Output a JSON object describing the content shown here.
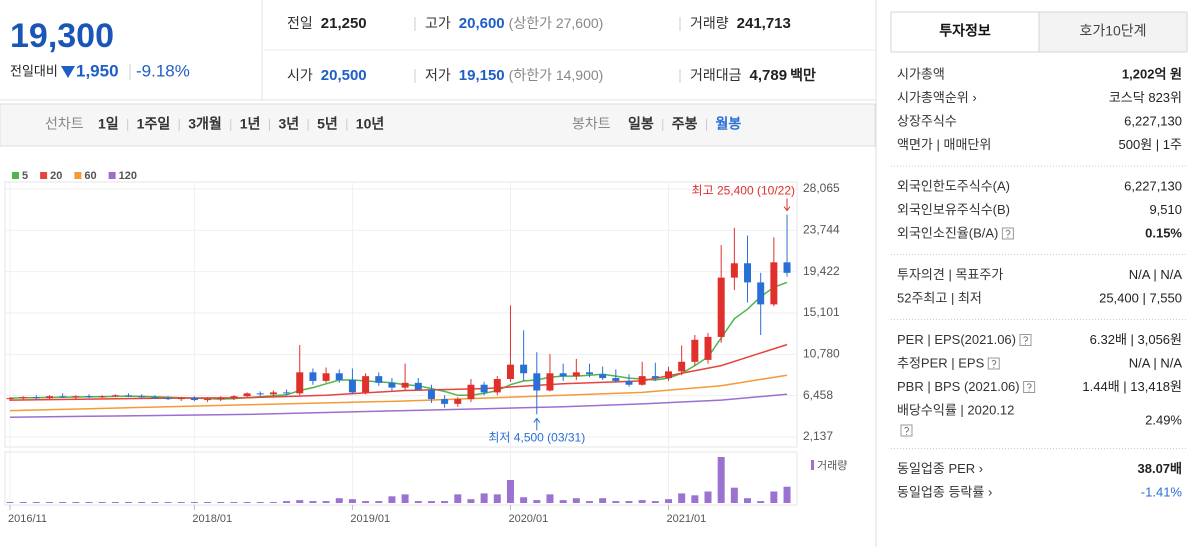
{
  "header": {
    "price": "19,300",
    "change_label": "전일대비",
    "change": "1,950",
    "change_rate": "-9.18%",
    "fields": [
      [
        {
          "label": "전일",
          "value": "21,250"
        },
        {
          "label": "고가",
          "value": "20,600",
          "note": "(상한가 27,600)",
          "color": "#1e5ec8"
        },
        {
          "label": "거래량",
          "value": "241,713"
        }
      ],
      [
        {
          "label": "시가",
          "value": "20,500",
          "color": "#1e5ec8"
        },
        {
          "label": "저가",
          "value": "19,150",
          "note": "(하한가 14,900)",
          "color": "#1e5ec8"
        },
        {
          "label": "거래대금",
          "value": "4,789",
          "unit": "백만"
        }
      ]
    ]
  },
  "period_tabs": {
    "line_chart": {
      "label": "선차트",
      "options": [
        "1일",
        "1주일",
        "3개월",
        "1년",
        "3년",
        "5년",
        "10년"
      ]
    },
    "candle_chart": {
      "label": "봉차트",
      "options": [
        "일봉",
        "주봉",
        "월봉"
      ],
      "selected": 2
    }
  },
  "chart_data": {
    "type": "candlestick",
    "categories": [
      "2016/11",
      null,
      null,
      null,
      null,
      null,
      null,
      null,
      null,
      null,
      null,
      null,
      null,
      null,
      "2018/01",
      null,
      null,
      null,
      null,
      null,
      null,
      null,
      null,
      null,
      null,
      null,
      "2019/01",
      null,
      null,
      null,
      null,
      null,
      null,
      null,
      null,
      null,
      null,
      null,
      "2020/01",
      null,
      null,
      null,
      null,
      null,
      null,
      null,
      null,
      null,
      null,
      null,
      "2021/01",
      null,
      null,
      null,
      null,
      null,
      null,
      null,
      null,
      null
    ],
    "open": [
      6100,
      6200,
      6300,
      6200,
      6400,
      6300,
      6400,
      6300,
      6400,
      6500,
      6400,
      6300,
      6200,
      6100,
      6200,
      6000,
      6100,
      6200,
      6400,
      6700,
      6600,
      6800,
      6700,
      8900,
      8000,
      8800,
      8100,
      6800,
      8500,
      7800,
      7300,
      7800,
      7100,
      6100,
      5600,
      6100,
      7600,
      6800,
      8200,
      9700,
      8800,
      7000,
      8800,
      8500,
      8900,
      8700,
      8300,
      8000,
      7600,
      8500,
      8300,
      9000,
      10000,
      10200,
      12600,
      18800,
      20300,
      18300,
      16000,
      20400
    ],
    "high": [
      6300,
      6400,
      6500,
      6500,
      6700,
      6500,
      6600,
      6500,
      6600,
      6700,
      6600,
      6500,
      6400,
      6300,
      6400,
      6300,
      6400,
      6500,
      6800,
      6900,
      7000,
      7100,
      11750,
      9300,
      9400,
      9200,
      9300,
      8800,
      8900,
      8300,
      9800,
      8300,
      7600,
      6500,
      6300,
      8200,
      7900,
      8500,
      15900,
      13300,
      11000,
      10800,
      9800,
      10300,
      9800,
      9500,
      9200,
      8700,
      10000,
      9900,
      9500,
      11700,
      12800,
      13000,
      22200,
      24000,
      23200,
      19300,
      23000,
      25400
    ],
    "low": [
      5900,
      6000,
      6100,
      6100,
      6200,
      6100,
      6200,
      6200,
      6300,
      6300,
      6200,
      6100,
      6000,
      5900,
      5900,
      5800,
      5900,
      6000,
      6300,
      6400,
      6400,
      6500,
      6500,
      7600,
      7800,
      7800,
      6600,
      6600,
      7500,
      7000,
      7000,
      7000,
      5700,
      5200,
      5300,
      5800,
      6500,
      6500,
      7900,
      8000,
      4500,
      6900,
      8000,
      8100,
      8400,
      8100,
      7800,
      7400,
      7500,
      8000,
      8000,
      8600,
      9600,
      9800,
      12000,
      17500,
      16200,
      12800,
      15800,
      18900
    ],
    "close": [
      6200,
      6300,
      6200,
      6400,
      6300,
      6400,
      6300,
      6400,
      6500,
      6400,
      6300,
      6200,
      6100,
      6200,
      6000,
      6100,
      6200,
      6400,
      6700,
      6600,
      6800,
      6700,
      8900,
      8000,
      8800,
      8100,
      6800,
      8500,
      7800,
      7300,
      7800,
      7100,
      6100,
      5600,
      6100,
      7600,
      6800,
      8200,
      9700,
      8800,
      7000,
      8800,
      8500,
      8900,
      8700,
      8300,
      8000,
      7600,
      8500,
      8300,
      9000,
      10000,
      12300,
      12600,
      18800,
      20300,
      18300,
      16000,
      20400,
      19300
    ],
    "up_color": "#e0302c",
    "down_color": "#2a6fd6",
    "ylim": [
      2137,
      28065
    ],
    "yticks": [
      {
        "value": 28065,
        "label": "28,065"
      },
      {
        "value": 23744,
        "label": "23,744"
      },
      {
        "value": 19422,
        "label": "19,422"
      },
      {
        "value": 15101,
        "label": "15,101"
      },
      {
        "value": 10780,
        "label": "10,780"
      },
      {
        "value": 6458,
        "label": "6,458"
      },
      {
        "value": 2137,
        "label": "2,137"
      }
    ],
    "grid": true,
    "moving_averages": [
      {
        "name": "5",
        "color": "#4fb64a",
        "values": [
          6200,
          6250,
          6250,
          6280,
          6300,
          6320,
          6340,
          6350,
          6380,
          6400,
          6380,
          6350,
          6300,
          6250,
          6200,
          6150,
          6100,
          6150,
          6250,
          6350,
          6450,
          6550,
          7000,
          7300,
          7700,
          8100,
          8100,
          8000,
          7900,
          7800,
          7600,
          7500,
          7200,
          6900,
          6500,
          6500,
          6700,
          7000,
          7600,
          8000,
          8100,
          8400,
          8500,
          8500,
          8600,
          8700,
          8500,
          8300,
          8200,
          8100,
          8300,
          8800,
          9600,
          10500,
          12500,
          14500,
          15500,
          16800,
          17800,
          18300
        ]
      },
      {
        "name": "20",
        "color": "#e5443c",
        "x": [
          0,
          6,
          12,
          18,
          24,
          30,
          36,
          42,
          48,
          54,
          59
        ],
        "values": [
          6000,
          6100,
          6200,
          6250,
          6500,
          7000,
          7200,
          7700,
          8000,
          9600,
          11800
        ]
      },
      {
        "name": "60",
        "color": "#f59a36",
        "x": [
          0,
          6,
          12,
          18,
          24,
          30,
          36,
          42,
          48,
          54,
          59
        ],
        "values": [
          4900,
          5100,
          5300,
          5500,
          5700,
          5900,
          6200,
          6500,
          6800,
          7500,
          8600
        ]
      },
      {
        "name": "120",
        "color": "#9c6ed0",
        "x": [
          0,
          6,
          12,
          18,
          24,
          30,
          36,
          42,
          48,
          54,
          59
        ],
        "values": [
          4200,
          4300,
          4400,
          4500,
          4700,
          4900,
          5100,
          5300,
          5600,
          6000,
          6600
        ]
      }
    ],
    "annotations": {
      "high": {
        "text": "최고 25,400 (10/22)",
        "color": "#e0302c"
      },
      "low": {
        "text": "최저 4,500 (03/31)",
        "color": "#2a6fd6"
      }
    },
    "volume": {
      "name": "거래량",
      "color": "#9b72cf",
      "values": [
        1,
        1,
        1,
        1,
        1,
        1,
        1,
        1,
        1,
        1,
        1,
        1,
        1,
        1,
        1,
        1,
        1,
        1,
        1,
        1,
        1,
        2,
        3,
        2,
        2,
        5,
        4,
        2,
        2,
        7,
        9,
        2,
        2,
        2,
        9,
        4,
        10,
        9,
        24,
        6,
        3,
        9,
        3,
        5,
        2,
        5,
        2,
        2,
        3,
        2,
        4,
        10,
        8,
        12,
        48,
        16,
        5,
        2,
        12,
        17
      ]
    }
  },
  "info_panel": {
    "tabs": [
      "투자정보",
      "호가10단계"
    ],
    "selected_tab": 0,
    "groups": [
      {
        "rows": [
          {
            "label": "시가총액",
            "value": "1,202억 원",
            "bold": true
          },
          {
            "label": "시가총액순위 ›",
            "value": "코스닥 823위"
          },
          {
            "label": "상장주식수",
            "value": "6,227,130"
          },
          {
            "label": "액면가 | 매매단위",
            "value": "500원 | 1주"
          }
        ]
      },
      {
        "rows": [
          {
            "label": "외국인한도주식수(A)",
            "value": "6,227,130"
          },
          {
            "label": "외국인보유주식수(B)",
            "value": "9,510"
          },
          {
            "label": "외국인소진율(B/A)",
            "value": "0.15%",
            "bold": true,
            "help": "after"
          }
        ]
      },
      {
        "rows": [
          {
            "label": "투자의견 | 목표주가",
            "value": "N/A | N/A"
          },
          {
            "label": "52주최고 | 최저",
            "value": "25,400 | 7,550"
          }
        ]
      },
      {
        "rows": [
          {
            "label": "PER | EPS(2021.06)",
            "value": "6.32배 | 3,056원",
            "help": "after"
          },
          {
            "label": "추정PER | EPS",
            "value": "N/A | N/A",
            "help": "after"
          },
          {
            "label": "PBR | BPS (2021.06)",
            "value": "1.44배 | 13,418원",
            "help": "after"
          },
          {
            "label": "배당수익률 | 2020.12",
            "value": "2.49%",
            "help": "below"
          }
        ]
      },
      {
        "rows": [
          {
            "label": "동일업종 PER ›",
            "value": "38.07배",
            "bold": true
          },
          {
            "label": "동일업종 등락률 ›",
            "value": "-1.41%",
            "color": "#2a6fd6"
          }
        ]
      }
    ]
  }
}
